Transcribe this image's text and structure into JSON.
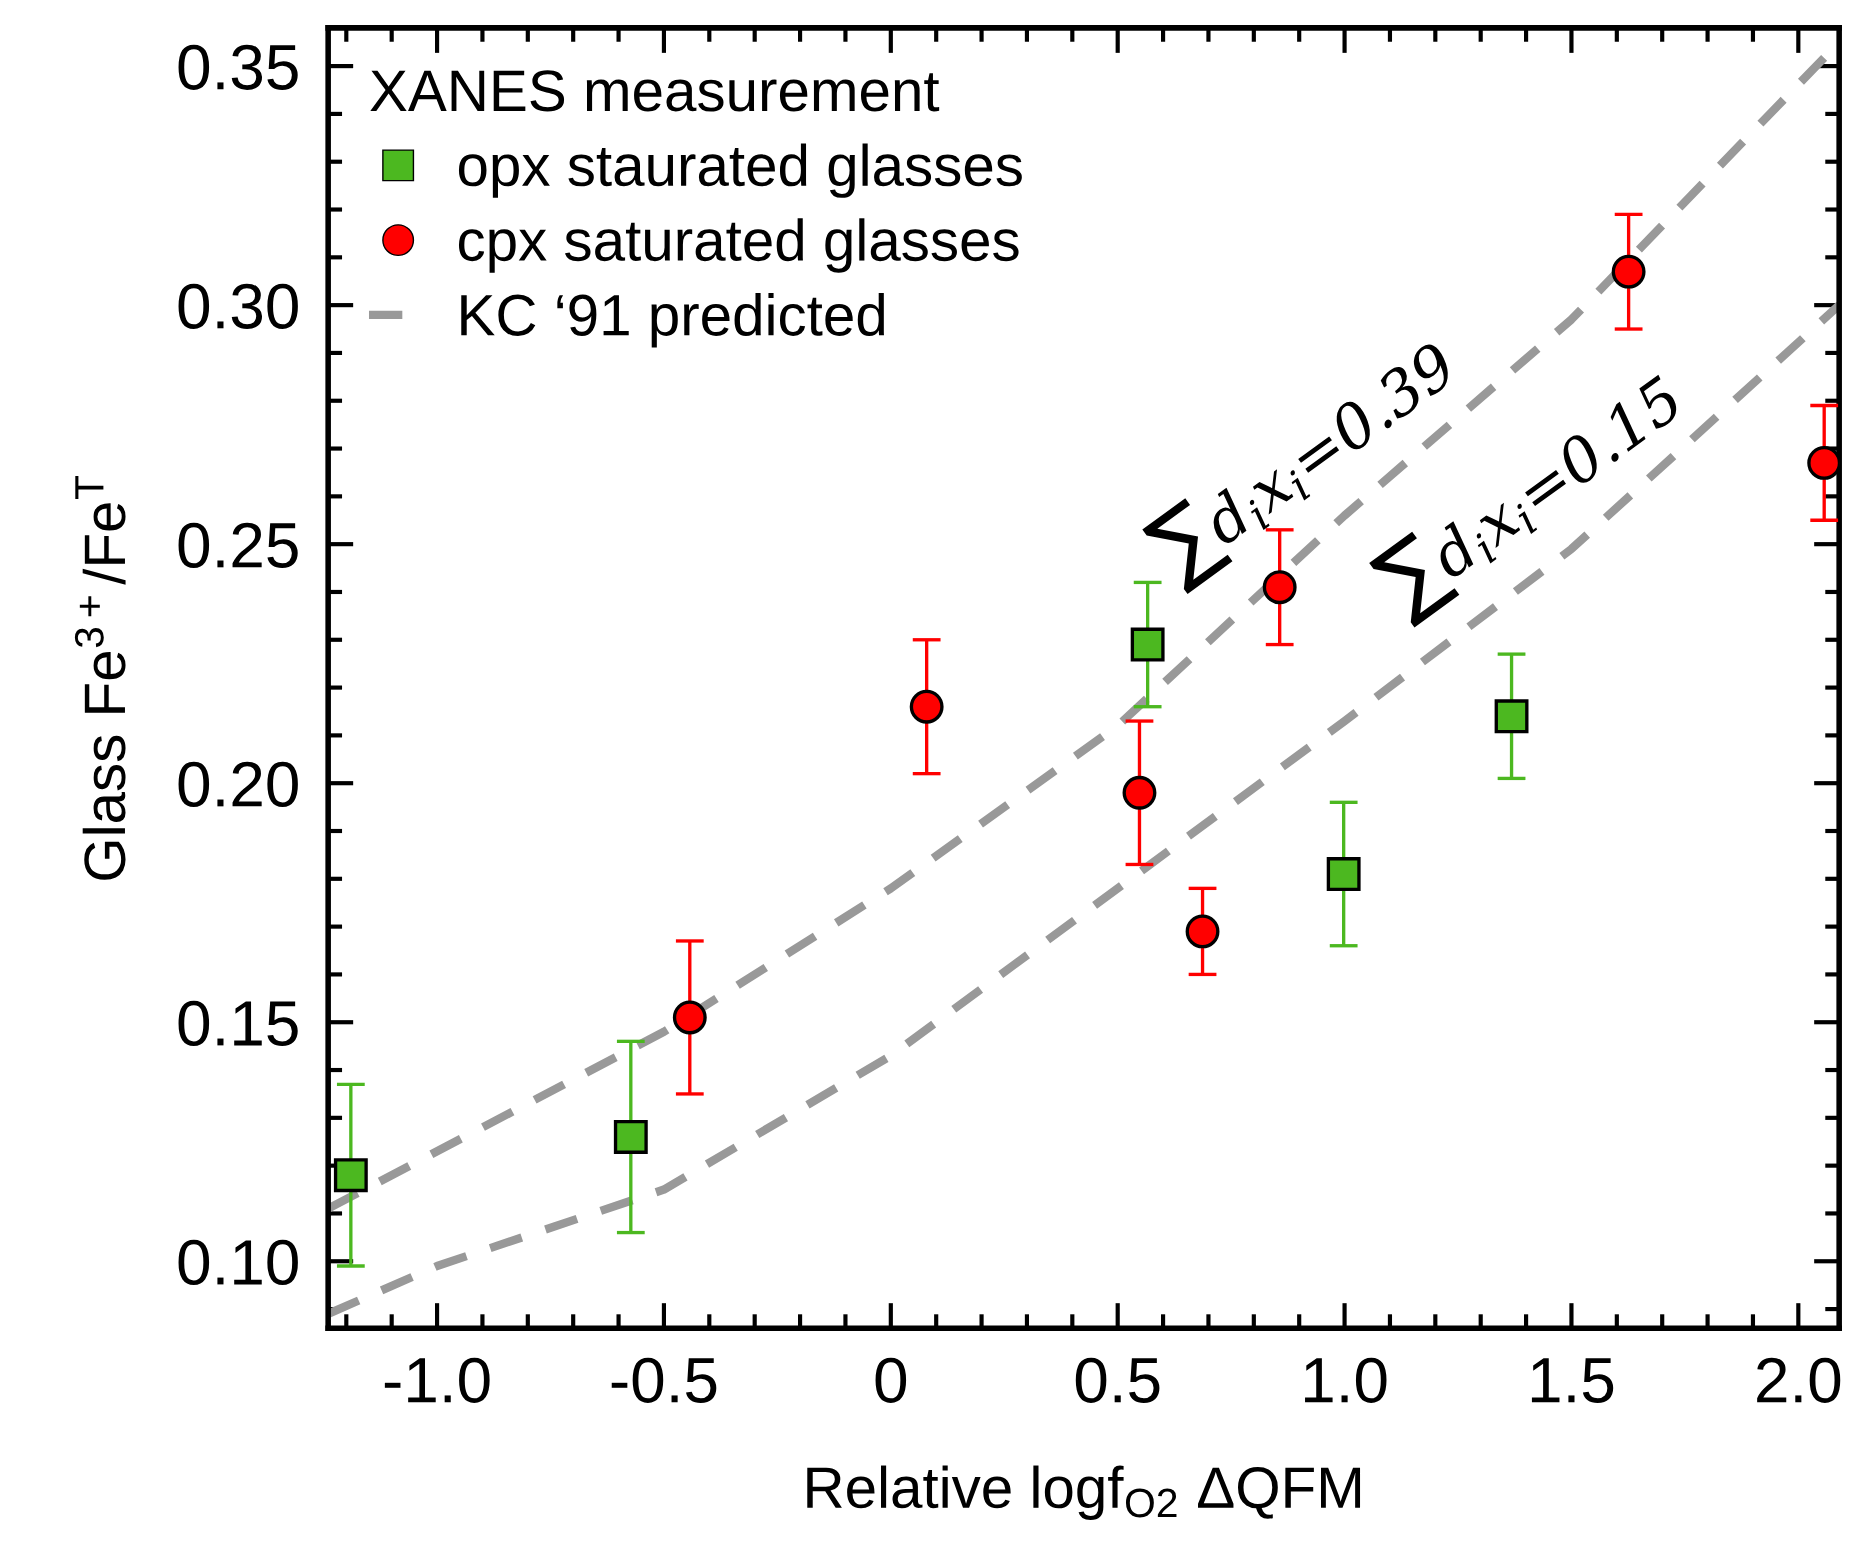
{
  "chart_data": {
    "type": "scatter",
    "xlabel": "Relative logf$_{O2}$ ΔQFM",
    "ylabel": "Glass Fe$^{3+}$/Fe$^{T}$",
    "legend_title": "XANES measurement",
    "legend": "top left",
    "grid": false,
    "xlim": [
      -1.24,
      2.09
    ],
    "ylim": [
      0.086,
      0.358
    ],
    "xticks": [
      {
        "value": -1,
        "label": "-1.0"
      },
      {
        "value": -0.5,
        "label": "-0.5"
      },
      0,
      {
        "value": 0.5,
        "label": "0.5"
      },
      {
        "value": 1,
        "label": "1.0"
      },
      {
        "value": 1.5,
        "label": "1.5"
      },
      {
        "value": 2,
        "label": "2.0"
      }
    ],
    "yticks": [
      {
        "value": 0.1,
        "label": "0.10"
      },
      {
        "value": 0.15,
        "label": "0.15"
      },
      {
        "value": 0.2,
        "label": "0.20"
      },
      {
        "value": 0.25,
        "label": "0.25"
      },
      {
        "value": 0.3,
        "label": "0.30"
      },
      {
        "value": 0.35,
        "label": "0.35"
      }
    ],
    "series": [
      {
        "name": "opx staurated glasses",
        "marker": "square",
        "color": "#4cb820",
        "x": [
          -1.19,
          -0.573,
          0.566,
          0.998,
          1.368
        ],
        "values": [
          0.118,
          0.126,
          0.229,
          0.181,
          0.214
        ],
        "errors": [
          0.019,
          0.02,
          0.013,
          0.015,
          0.013
        ]
      },
      {
        "name": "cpx saturated glasses",
        "marker": "circle",
        "color": "#ff0000",
        "x": [
          -0.443,
          0.079,
          0.548,
          0.687,
          0.857,
          1.626,
          2.057
        ],
        "values": [
          0.151,
          0.216,
          0.198,
          0.169,
          0.241,
          0.307,
          0.267
        ],
        "errors": [
          0.016,
          0.014,
          0.015,
          0.009,
          0.012,
          0.012,
          0.012
        ]
      },
      {
        "name": "KC ‘91 predicted",
        "type": "line",
        "marker": "none",
        "line_style": "dashed",
        "color": "#999999",
        "x": [
          -1.24,
          -1.0,
          -0.5,
          0,
          0.5,
          1.0,
          1.5,
          2.09
        ],
        "values": [
          0.111,
          0.123,
          0.148,
          0.178,
          0.212,
          0.256,
          0.297,
          0.355
        ]
      },
      {
        "type": "line",
        "marker": "none",
        "line_style": "dashed",
        "color": "#999999",
        "x": [
          -1.24,
          -1.0,
          -0.5,
          0,
          0.5,
          1.0,
          1.5,
          2.09
        ],
        "values": [
          0.089,
          0.099,
          0.115,
          0.143,
          0.178,
          0.213,
          0.249,
          0.3
        ]
      }
    ],
    "annotations": [
      {
        "text": "∑d$_{i}$x$_{i}$=0.39",
        "x": 1.0,
        "y": 0.256
      },
      {
        "text": "∑d$_{i}$x$_{i}$=0.15",
        "x": 1.5,
        "y": 0.249
      }
    ]
  }
}
